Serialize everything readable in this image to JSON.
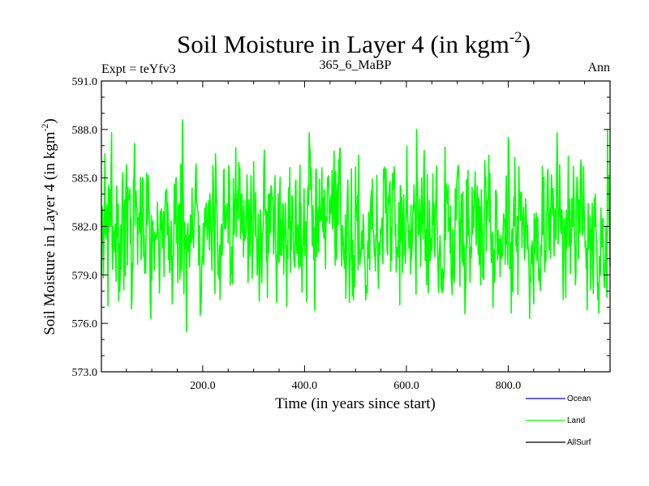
{
  "chart_data": {
    "type": "line",
    "title": "Soil Moisture in Layer 4 (in kgm",
    "title_sup": "-2",
    "title_close": ")",
    "subtitle_left": "Expt = teYfv3",
    "subtitle_center": "365_6_MaBP",
    "subtitle_right": "Ann",
    "xlabel": "Time (in years since start)",
    "ylabel": "Soil Moisture in Layer 4 (in kgm",
    "ylabel_sup": "-2",
    "ylabel_close": ")",
    "xlim": [
      1,
      1000
    ],
    "ylim": [
      573.0,
      591.0
    ],
    "x_ticks": [
      200,
      400,
      600,
      800
    ],
    "x_tick_labels": [
      "200.0",
      "400.0",
      "600.0",
      "800.0"
    ],
    "y_ticks": [
      573,
      576,
      579,
      582,
      585,
      588,
      591
    ],
    "y_tick_labels": [
      "573.0",
      "576.0",
      "579.0",
      "582.0",
      "585.0",
      "588.0",
      "591.0"
    ],
    "series": [
      {
        "name": "Ocean",
        "color": "#0000ff",
        "values": []
      },
      {
        "name": "Land",
        "color": "#00ff00",
        "mean": 582.0,
        "min": 575.5,
        "max": 588.6,
        "notable_points": [
          {
            "x": 1,
            "y": 579.0
          },
          {
            "x": 8,
            "y": 586.5
          },
          {
            "x": 35,
            "y": 577.4
          },
          {
            "x": 60,
            "y": 576.9
          },
          {
            "x": 90,
            "y": 585.3
          },
          {
            "x": 140,
            "y": 577.2
          },
          {
            "x": 160,
            "y": 588.6
          },
          {
            "x": 168,
            "y": 575.5
          },
          {
            "x": 195,
            "y": 576.5
          },
          {
            "x": 225,
            "y": 586.5
          },
          {
            "x": 300,
            "y": 586.0
          },
          {
            "x": 345,
            "y": 577.3
          },
          {
            "x": 410,
            "y": 586.9
          },
          {
            "x": 420,
            "y": 576.8
          },
          {
            "x": 620,
            "y": 588.0
          },
          {
            "x": 715,
            "y": 576.6
          },
          {
            "x": 770,
            "y": 577.0
          },
          {
            "x": 800,
            "y": 587.5
          },
          {
            "x": 850,
            "y": 577.2
          },
          {
            "x": 995,
            "y": 588.0
          },
          {
            "x": 1000,
            "y": 579.5
          }
        ]
      },
      {
        "name": "AllSurf",
        "color": "#000000",
        "values": []
      }
    ]
  }
}
